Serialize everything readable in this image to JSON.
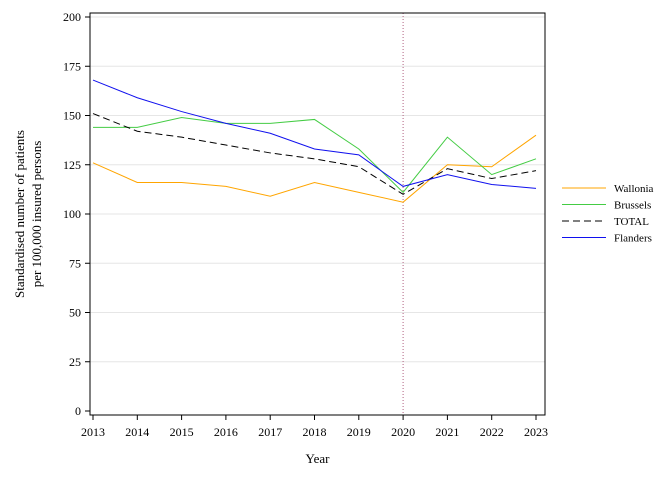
{
  "chart_data": {
    "type": "line",
    "xlabel": "Year",
    "ylabel_lines": [
      "Standardised number of patients",
      "per 100,000 insured persons"
    ],
    "x": [
      2013,
      2014,
      2015,
      2016,
      2017,
      2018,
      2019,
      2020,
      2021,
      2022,
      2023
    ],
    "xlim": [
      2013,
      2023
    ],
    "ylim": [
      0,
      200
    ],
    "yticks": [
      0,
      25,
      50,
      75,
      100,
      125,
      150,
      175,
      200
    ],
    "grid": true,
    "reference_line_x": 2020,
    "legend_position": "right",
    "series": [
      {
        "name": "Wallonia",
        "color": "#ffa500",
        "dash": "solid",
        "values": [
          126,
          116,
          116,
          114,
          109,
          116,
          111,
          106,
          125,
          124,
          140
        ]
      },
      {
        "name": "Brussels",
        "color": "#44cc44",
        "dash": "solid",
        "values": [
          144,
          144,
          149,
          146,
          146,
          148,
          133,
          111,
          139,
          120,
          128
        ]
      },
      {
        "name": "TOTAL",
        "color": "#000000",
        "dash": "dashed",
        "values": [
          151,
          142,
          139,
          135,
          131,
          128,
          124,
          110,
          123,
          118,
          122
        ]
      },
      {
        "name": "Flanders",
        "color": "#1010ee",
        "dash": "solid",
        "values": [
          168,
          159,
          152,
          146,
          141,
          133,
          130,
          114,
          120,
          115,
          113
        ]
      }
    ]
  }
}
